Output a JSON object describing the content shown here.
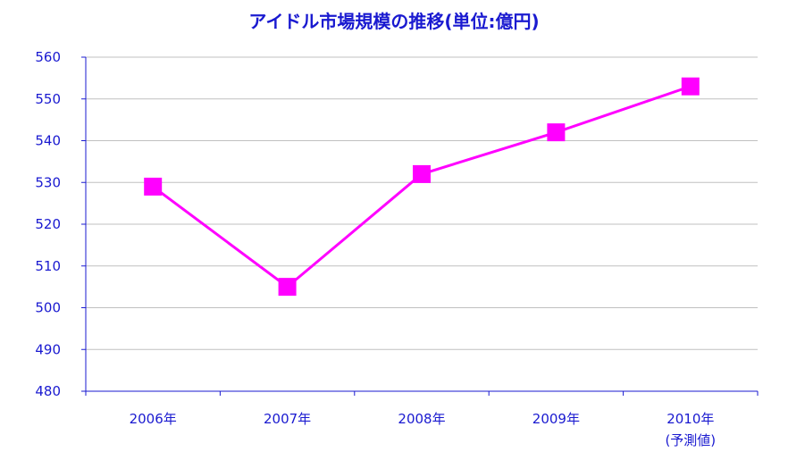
{
  "chart_data": {
    "type": "line",
    "title": "アイドル市場規模の推移(単位:億円)",
    "xlabel": "",
    "ylabel": "",
    "categories": [
      "2006年",
      "2007年",
      "2008年",
      "2009年",
      "2010年"
    ],
    "category_sublabels": [
      "",
      "",
      "",
      "",
      "(予測値)"
    ],
    "series": [
      {
        "values": [
          529,
          505,
          532,
          542,
          553
        ]
      }
    ],
    "ylim": [
      480,
      560
    ],
    "yticks": [
      480,
      490,
      500,
      510,
      520,
      530,
      540,
      550,
      560
    ],
    "grid": true,
    "legend": "none",
    "colors": {
      "line": "#ff00ff",
      "marker": "#ff00ff",
      "axis": "#1a1ad0",
      "grid": "#c0c0c0",
      "text": "#1a1ad0"
    },
    "marker": "square"
  }
}
